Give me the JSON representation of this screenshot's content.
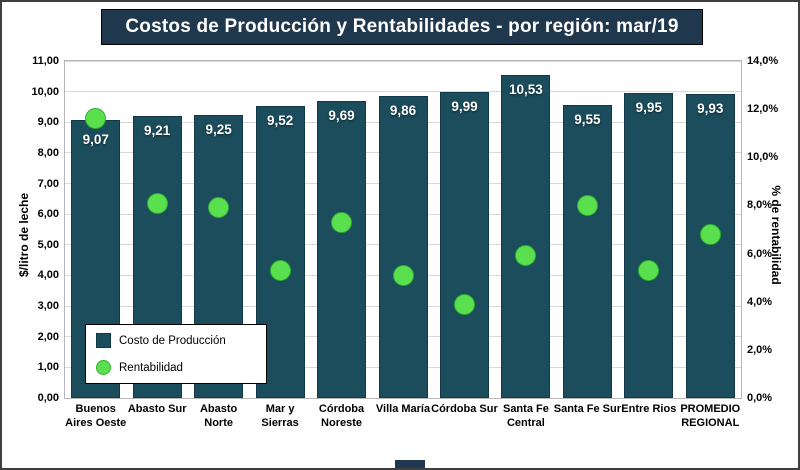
{
  "title": "Costos de Producción y Rentabilidades - por región: mar/19",
  "ylabel_left": "$/litro de leche",
  "ylabel_right": "% de rentabilidad",
  "legend": {
    "bar_label": "Costo de Producción",
    "dot_label": "Rentabilidad"
  },
  "colors": {
    "bar": "#1b4d5c",
    "dot": "#5ae04f",
    "title_bg": "#20384e",
    "gridline": "#d9d9d9"
  },
  "chart_data": {
    "type": "bar",
    "title": "Costos de Producción y Rentabilidades - por región: mar/19",
    "xlabel": "",
    "ylabel": "$/litro de leche",
    "ylabel_secondary": "% de rentabilidad",
    "grid": true,
    "legend_position": "bottom-left-inside",
    "categories": [
      [
        "Buenos",
        "Aires Oeste"
      ],
      [
        "Abasto Sur"
      ],
      [
        "Abasto",
        "Norte"
      ],
      [
        "Mar y",
        "Sierras"
      ],
      [
        "Córdoba",
        "Noreste"
      ],
      [
        "Villa María"
      ],
      [
        "Córdoba Sur"
      ],
      [
        "Santa Fe",
        "Central"
      ],
      [
        "Santa Fe Sur"
      ],
      [
        "Entre Rios"
      ],
      [
        "PROMEDIO",
        "REGIONAL"
      ]
    ],
    "series": [
      {
        "name": "Costo de Producción",
        "axis": "left",
        "values": [
          9.07,
          9.21,
          9.25,
          9.52,
          9.69,
          9.86,
          9.99,
          10.53,
          9.55,
          9.95,
          9.93
        ],
        "labels": [
          "9,07",
          "9,21",
          "9,25",
          "9,52",
          "9,69",
          "9,86",
          "9,99",
          "10,53",
          "9,55",
          "9,95",
          "9,93"
        ]
      },
      {
        "name": "Rentabilidad",
        "axis": "right",
        "values": [
          11.6,
          8.1,
          7.9,
          5.3,
          7.3,
          5.1,
          3.9,
          5.9,
          8.0,
          5.3,
          6.8
        ]
      }
    ],
    "left_axis": {
      "min": 0,
      "max": 11,
      "step": 1,
      "ticks": [
        "0,00",
        "1,00",
        "2,00",
        "3,00",
        "4,00",
        "5,00",
        "6,00",
        "7,00",
        "8,00",
        "9,00",
        "10,00",
        "11,00"
      ]
    },
    "right_axis": {
      "min": 0,
      "max": 14,
      "step": 2,
      "ticks": [
        "0,0%",
        "2,0%",
        "4,0%",
        "6,0%",
        "8,0%",
        "10,0%",
        "12,0%",
        "14,0%"
      ]
    }
  }
}
